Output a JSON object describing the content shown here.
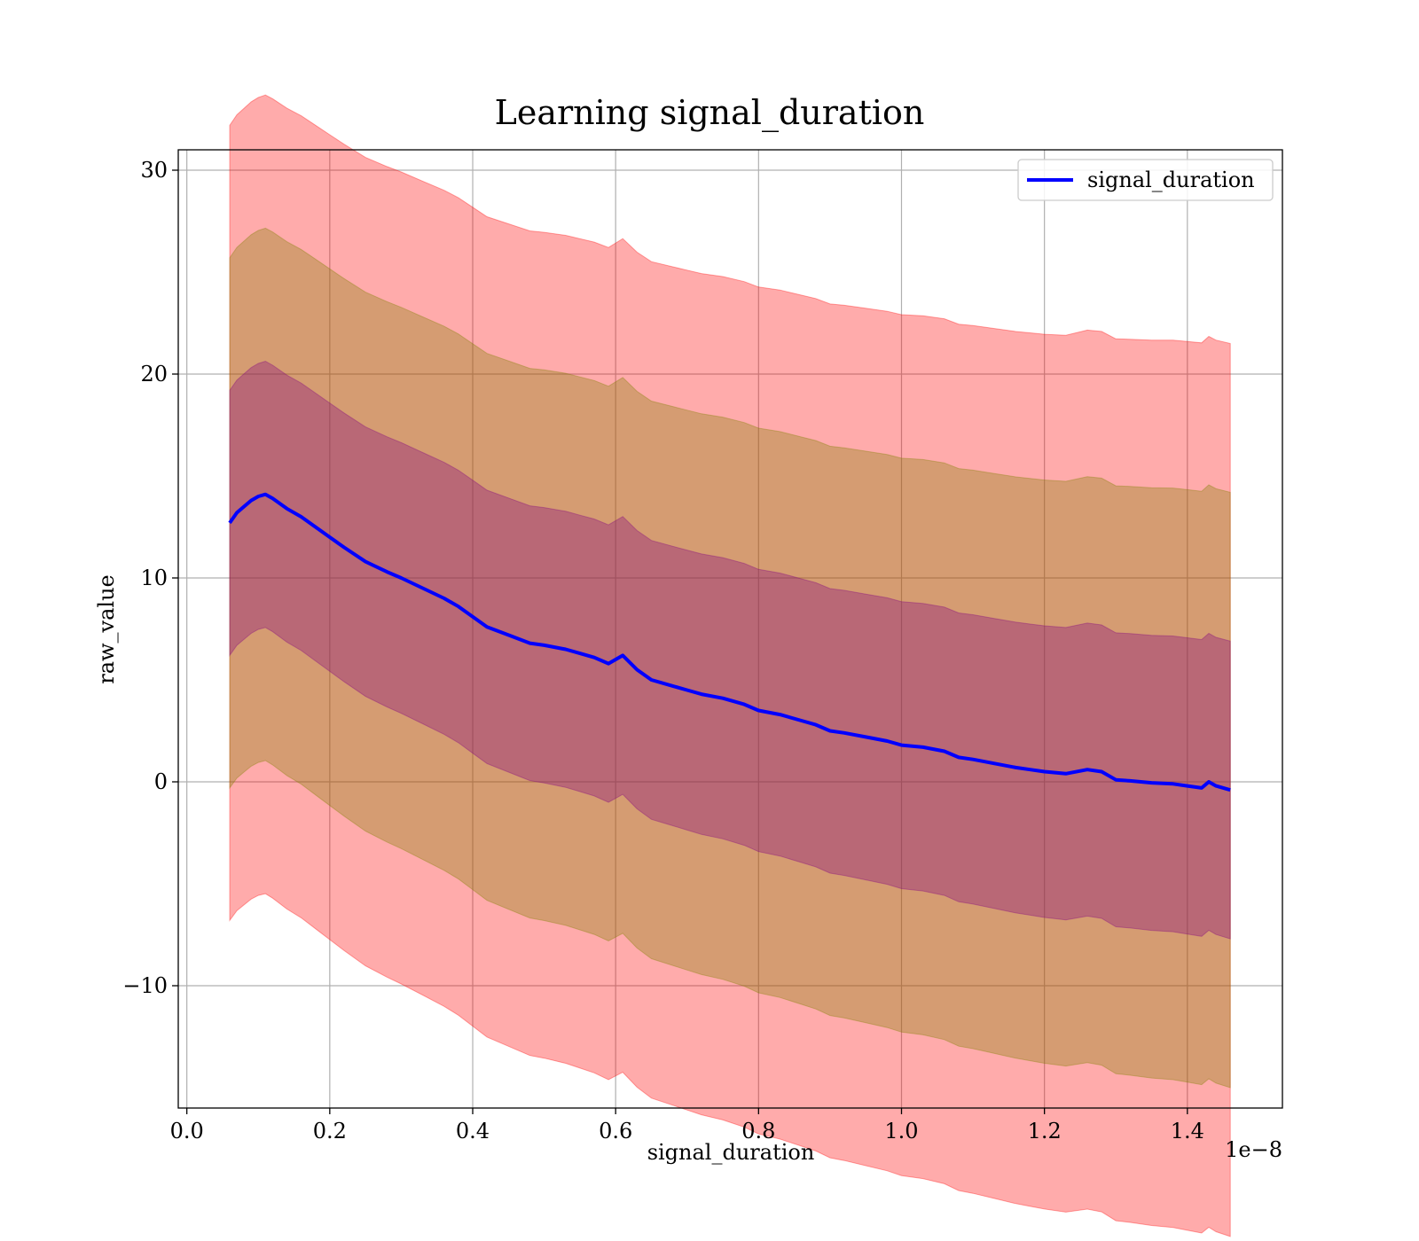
{
  "chart_data": {
    "type": "line",
    "title": "Learning signal_duration",
    "xlabel": "signal_duration",
    "ylabel": "raw_value",
    "x_offset_label": "1e−8",
    "xlim": [
      -0.012,
      1.533
    ],
    "ylim": [
      -16.0,
      31.0
    ],
    "x_ticks": [
      0.0,
      0.2,
      0.4,
      0.6,
      0.8,
      1.0,
      1.2,
      1.4
    ],
    "x_tick_labels": [
      "0.0",
      "0.2",
      "0.4",
      "0.6",
      "0.8",
      "1.0",
      "1.2",
      "1.4"
    ],
    "y_ticks": [
      -10,
      0,
      10,
      20,
      30
    ],
    "y_tick_labels": [
      "−10",
      "0",
      "10",
      "20",
      "30"
    ],
    "grid": true,
    "legend_position": "top-right",
    "band_colors": {
      "outer_3sd": "#ff0000",
      "mid_2sd": "#808000",
      "inner_1sd": "#800080"
    },
    "band_opacity": 0.33,
    "series": [
      {
        "name": "signal_duration",
        "color": "#0000ff",
        "x": [
          0.06,
          0.07,
          0.08,
          0.09,
          0.1,
          0.11,
          0.12,
          0.14,
          0.16,
          0.18,
          0.2,
          0.22,
          0.25,
          0.28,
          0.3,
          0.33,
          0.36,
          0.38,
          0.4,
          0.42,
          0.45,
          0.48,
          0.5,
          0.53,
          0.55,
          0.57,
          0.59,
          0.61,
          0.63,
          0.65,
          0.68,
          0.7,
          0.72,
          0.75,
          0.78,
          0.8,
          0.83,
          0.86,
          0.88,
          0.9,
          0.92,
          0.95,
          0.98,
          1.0,
          1.03,
          1.06,
          1.08,
          1.1,
          1.13,
          1.16,
          1.18,
          1.2,
          1.23,
          1.26,
          1.28,
          1.3,
          1.32,
          1.35,
          1.38,
          1.4,
          1.42,
          1.43,
          1.44,
          1.46
        ],
        "values": [
          12.7,
          13.2,
          13.5,
          13.8,
          14.0,
          14.1,
          13.9,
          13.4,
          13.0,
          12.5,
          12.0,
          11.5,
          10.8,
          10.3,
          10.0,
          9.5,
          9.0,
          8.6,
          8.1,
          7.6,
          7.2,
          6.8,
          6.7,
          6.5,
          6.3,
          6.1,
          5.8,
          6.2,
          5.5,
          5.0,
          4.7,
          4.5,
          4.3,
          4.1,
          3.8,
          3.5,
          3.3,
          3.0,
          2.8,
          2.5,
          2.4,
          2.2,
          2.0,
          1.8,
          1.7,
          1.5,
          1.2,
          1.1,
          0.9,
          0.7,
          0.6,
          0.5,
          0.4,
          0.6,
          0.5,
          0.1,
          0.05,
          -0.05,
          -0.1,
          -0.2,
          -0.3,
          0.0,
          -0.2,
          -0.4
        ]
      }
    ]
  }
}
